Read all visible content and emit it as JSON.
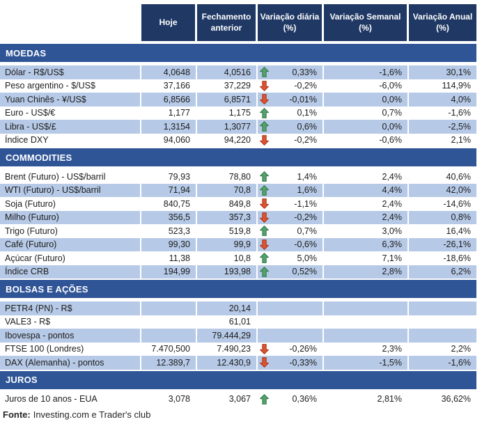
{
  "header": {
    "columns": [
      "Hoje",
      "Fechamento anterior",
      "Variação diária (%)",
      "Variação Semanal (%)",
      "Variação Anual (%)"
    ]
  },
  "sections": [
    {
      "title": "MOEDAS",
      "rows": [
        {
          "name": "Dólar - R$/US$",
          "hoje": "4,0648",
          "fechamento": "4,0516",
          "arrow": "up",
          "diaria": "0,33%",
          "semanal": "-1,6%",
          "anual": "30,1%"
        },
        {
          "name": "Peso argentino - $/US$",
          "hoje": "37,166",
          "fechamento": "37,229",
          "arrow": "down",
          "diaria": "-0,2%",
          "semanal": "-6,0%",
          "anual": "114,9%"
        },
        {
          "name": "Yuan Chinês - ¥/US$",
          "hoje": "6,8566",
          "fechamento": "6,8571",
          "arrow": "down",
          "diaria": "-0,01%",
          "semanal": "0,0%",
          "anual": "4,0%"
        },
        {
          "name": "Euro - US$/€",
          "hoje": "1,177",
          "fechamento": "1,175",
          "arrow": "up",
          "diaria": "0,1%",
          "semanal": "0,7%",
          "anual": "-1,6%"
        },
        {
          "name": "Libra - US$/£",
          "hoje": "1,3154",
          "fechamento": "1,3077",
          "arrow": "up",
          "diaria": "0,6%",
          "semanal": "0,0%",
          "anual": "-2,5%"
        },
        {
          "name": "Índice DXY",
          "hoje": "94,060",
          "fechamento": "94,220",
          "arrow": "down",
          "diaria": "-0,2%",
          "semanal": "-0,6%",
          "anual": "2,1%"
        }
      ]
    },
    {
      "title": "COMMODITIES",
      "rows": [
        {
          "name": "Brent (Futuro) - US$/barril",
          "hoje": "79,93",
          "fechamento": "78,80",
          "arrow": "up",
          "diaria": "1,4%",
          "semanal": "2,4%",
          "anual": "40,6%"
        },
        {
          "name": "WTI (Futuro) - US$/barril",
          "hoje": "71,94",
          "fechamento": "70,8",
          "arrow": "up",
          "diaria": "1,6%",
          "semanal": "4,4%",
          "anual": "42,0%"
        },
        {
          "name": "Soja (Futuro)",
          "hoje": "840,75",
          "fechamento": "849,8",
          "arrow": "down",
          "diaria": "-1,1%",
          "semanal": "2,4%",
          "anual": "-14,6%"
        },
        {
          "name": "Milho (Futuro)",
          "hoje": "356,5",
          "fechamento": "357,3",
          "arrow": "down",
          "diaria": "-0,2%",
          "semanal": "2,4%",
          "anual": "0,8%"
        },
        {
          "name": "Trigo (Futuro)",
          "hoje": "523,3",
          "fechamento": "519,8",
          "arrow": "up",
          "diaria": "0,7%",
          "semanal": "3,0%",
          "anual": "16,4%"
        },
        {
          "name": "Café (Futuro)",
          "hoje": "99,30",
          "fechamento": "99,9",
          "arrow": "down",
          "diaria": "-0,6%",
          "semanal": "6,3%",
          "anual": "-26,1%"
        },
        {
          "name": "Açúcar (Futuro)",
          "hoje": "11,38",
          "fechamento": "10,8",
          "arrow": "up",
          "diaria": "5,0%",
          "semanal": "7,1%",
          "anual": "-18,6%"
        },
        {
          "name": "Índice CRB",
          "hoje": "194,99",
          "fechamento": "193,98",
          "arrow": "up",
          "diaria": "0,52%",
          "semanal": "2,8%",
          "anual": "6,2%"
        }
      ]
    },
    {
      "title": "BOLSAS E AÇÕES",
      "rows": [
        {
          "name": "PETR4 (PN) - R$",
          "hoje": "",
          "fechamento": "20,14",
          "arrow": "none",
          "diaria": "",
          "semanal": "",
          "anual": ""
        },
        {
          "name": "VALE3 - R$",
          "hoje": "",
          "fechamento": "61,01",
          "arrow": "none",
          "diaria": "",
          "semanal": "",
          "anual": ""
        },
        {
          "name": "Ibovespa - pontos",
          "hoje": "",
          "fechamento": "79.444,29",
          "arrow": "none",
          "diaria": "",
          "semanal": "",
          "anual": ""
        },
        {
          "name": "FTSE 100 (Londres)",
          "hoje": "7.470,500",
          "fechamento": "7.490,23",
          "arrow": "down",
          "diaria": "-0,26%",
          "semanal": "2,3%",
          "anual": "2,2%"
        },
        {
          "name": "DAX (Alemanha) - pontos",
          "hoje": "12.389,7",
          "fechamento": "12.430,9",
          "arrow": "down",
          "diaria": "-0,33%",
          "semanal": "-1,5%",
          "anual": "-1,6%"
        }
      ]
    },
    {
      "title": "JUROS",
      "rows": [
        {
          "name": "Juros de 10 anos - EUA",
          "hoje": "3,078",
          "fechamento": "3,067",
          "arrow": "up",
          "diaria": "0,36%",
          "semanal": "2,81%",
          "anual": "36,62%"
        }
      ]
    }
  ],
  "footer": {
    "label": "Fonte:",
    "text": "Investing.com e Trader's club"
  },
  "colors": {
    "header_bg": "#1F3864",
    "section_band_bg": "#2F5597",
    "row_shade": "#B6C9E6",
    "arrow_up": "#55A06B",
    "arrow_down": "#DD5331"
  }
}
